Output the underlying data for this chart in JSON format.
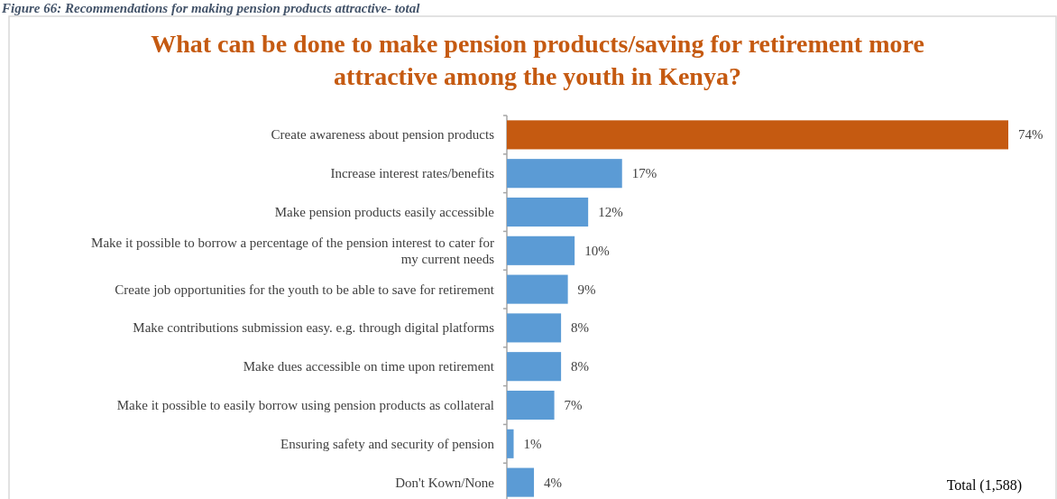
{
  "chart_data": {
    "type": "bar",
    "orientation": "horizontal",
    "title": "What can be done to make pension products/saving for retirement more attractive among the youth in Kenya?",
    "categories": [
      "Create awareness about pension products",
      "Increase interest rates/benefits",
      "Make pension products easily accessible",
      "Make it possible to borrow a percentage of the pension interest to cater for my current needs",
      "Create job opportunities for the youth to be able to save for retirement",
      "Make contributions submission easy. e.g. through digital platforms",
      "Make dues accessible on time upon retirement",
      "Make it possible to easily borrow using pension products as collateral",
      "Ensuring safety and security of pension",
      "Don't Kown/None"
    ],
    "values": [
      74,
      17,
      12,
      10,
      9,
      8,
      8,
      7,
      1,
      4
    ],
    "value_labels": [
      "74%",
      "17%",
      "12%",
      "10%",
      "9%",
      "8%",
      "8%",
      "7%",
      "1%",
      "4%"
    ],
    "colors": [
      "#c55a11",
      "#5b9bd5",
      "#5b9bd5",
      "#5b9bd5",
      "#5b9bd5",
      "#5b9bd5",
      "#5b9bd5",
      "#5b9bd5",
      "#5b9bd5",
      "#5b9bd5"
    ],
    "annotations": [
      "Figure 66: Recommendations for making pension products attractive- total",
      "Total (1,588)"
    ]
  }
}
